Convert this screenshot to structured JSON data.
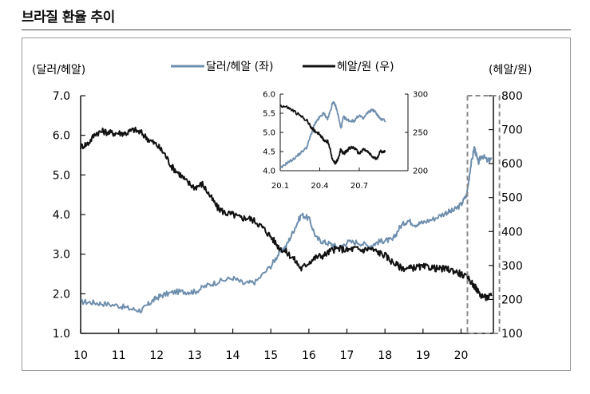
{
  "page": {
    "title": "브라질 환율 추이"
  },
  "chart_data": {
    "type": "line",
    "title": "브라질 환율 추이",
    "x": [
      10,
      11,
      12,
      13,
      14,
      15,
      16,
      17,
      18,
      19,
      20
    ],
    "x_tick_labels": [
      "10",
      "11",
      "12",
      "13",
      "14",
      "15",
      "16",
      "17",
      "18",
      "19",
      "20"
    ],
    "xlim": [
      10,
      20.85
    ],
    "left_axis": {
      "label": "(달러/헤알)",
      "ylim": [
        1.0,
        7.0
      ],
      "ticks": [
        "1.0",
        "2.0",
        "3.0",
        "4.0",
        "5.0",
        "6.0",
        "7.0"
      ]
    },
    "right_axis": {
      "label": "(헤알/원)",
      "ylim": [
        100,
        800
      ],
      "ticks": [
        "100",
        "200",
        "300",
        "400",
        "500",
        "600",
        "700",
        "800"
      ]
    },
    "series": [
      {
        "name": "달러/헤알 (좌)",
        "axis": "left",
        "color": "#6f8fae",
        "points": [
          [
            10.0,
            1.8
          ],
          [
            10.3,
            1.78
          ],
          [
            10.6,
            1.75
          ],
          [
            11.0,
            1.7
          ],
          [
            11.3,
            1.62
          ],
          [
            11.6,
            1.58
          ],
          [
            11.8,
            1.75
          ],
          [
            12.0,
            1.9
          ],
          [
            12.2,
            1.98
          ],
          [
            12.5,
            2.05
          ],
          [
            12.8,
            2.05
          ],
          [
            13.0,
            2.05
          ],
          [
            13.3,
            2.2
          ],
          [
            13.6,
            2.3
          ],
          [
            14.0,
            2.4
          ],
          [
            14.3,
            2.25
          ],
          [
            14.6,
            2.3
          ],
          [
            15.0,
            2.7
          ],
          [
            15.2,
            3.0
          ],
          [
            15.4,
            3.2
          ],
          [
            15.6,
            3.6
          ],
          [
            15.8,
            4.0
          ],
          [
            16.0,
            3.9
          ],
          [
            16.2,
            3.4
          ],
          [
            16.4,
            3.3
          ],
          [
            16.6,
            3.25
          ],
          [
            16.8,
            3.15
          ],
          [
            17.0,
            3.3
          ],
          [
            17.3,
            3.3
          ],
          [
            17.6,
            3.2
          ],
          [
            17.8,
            3.3
          ],
          [
            18.0,
            3.35
          ],
          [
            18.2,
            3.35
          ],
          [
            18.4,
            3.7
          ],
          [
            18.6,
            3.85
          ],
          [
            18.8,
            3.75
          ],
          [
            19.0,
            3.8
          ],
          [
            19.3,
            3.9
          ],
          [
            19.6,
            4.05
          ],
          [
            19.8,
            4.1
          ],
          [
            20.0,
            4.25
          ],
          [
            20.15,
            4.5
          ],
          [
            20.25,
            5.2
          ],
          [
            20.35,
            5.7
          ],
          [
            20.45,
            5.3
          ],
          [
            20.55,
            5.5
          ],
          [
            20.7,
            5.35
          ],
          [
            20.8,
            5.4
          ]
        ]
      },
      {
        "name": "헤알/원 (우)",
        "axis": "right",
        "color": "#111111",
        "points": [
          [
            10.0,
            650
          ],
          [
            10.2,
            660
          ],
          [
            10.4,
            690
          ],
          [
            10.6,
            695
          ],
          [
            10.8,
            690
          ],
          [
            11.0,
            690
          ],
          [
            11.2,
            690
          ],
          [
            11.4,
            700
          ],
          [
            11.6,
            690
          ],
          [
            11.8,
            670
          ],
          [
            12.0,
            655
          ],
          [
            12.2,
            630
          ],
          [
            12.4,
            590
          ],
          [
            12.6,
            570
          ],
          [
            12.8,
            545
          ],
          [
            13.0,
            530
          ],
          [
            13.2,
            540
          ],
          [
            13.4,
            505
          ],
          [
            13.6,
            470
          ],
          [
            13.8,
            455
          ],
          [
            14.0,
            450
          ],
          [
            14.2,
            440
          ],
          [
            14.4,
            440
          ],
          [
            14.6,
            430
          ],
          [
            14.8,
            410
          ],
          [
            15.0,
            385
          ],
          [
            15.2,
            355
          ],
          [
            15.4,
            340
          ],
          [
            15.6,
            320
          ],
          [
            15.8,
            290
          ],
          [
            16.0,
            310
          ],
          [
            16.2,
            325
          ],
          [
            16.4,
            330
          ],
          [
            16.6,
            345
          ],
          [
            16.8,
            350
          ],
          [
            17.0,
            345
          ],
          [
            17.2,
            350
          ],
          [
            17.4,
            345
          ],
          [
            17.6,
            350
          ],
          [
            17.8,
            340
          ],
          [
            18.0,
            330
          ],
          [
            18.2,
            310
          ],
          [
            18.4,
            295
          ],
          [
            18.6,
            290
          ],
          [
            18.8,
            295
          ],
          [
            19.0,
            295
          ],
          [
            19.2,
            295
          ],
          [
            19.4,
            290
          ],
          [
            19.6,
            290
          ],
          [
            19.8,
            285
          ],
          [
            20.0,
            275
          ],
          [
            20.2,
            260
          ],
          [
            20.35,
            240
          ],
          [
            20.5,
            215
          ],
          [
            20.65,
            205
          ],
          [
            20.8,
            210
          ]
        ]
      }
    ],
    "highlight_box": {
      "x_range": [
        20.0,
        20.8
      ],
      "y_range": [
        100,
        800
      ],
      "style": "dashed"
    },
    "inset": {
      "type": "line",
      "x_tick_labels": [
        "20.1",
        "20.4",
        "20.7"
      ],
      "xlim": [
        1,
        10.7
      ],
      "left_axis": {
        "ylim": [
          4.0,
          6.0
        ],
        "ticks": [
          "4.0",
          "4.5",
          "5.0",
          "5.5",
          "6.0"
        ]
      },
      "right_axis": {
        "ylim": [
          200,
          300
        ],
        "ticks": [
          "200",
          "250",
          "300"
        ]
      },
      "series": [
        {
          "name": "달러/헤알 (좌)",
          "axis": "left",
          "color": "#6f8fae",
          "points": [
            [
              1.0,
              4.05
            ],
            [
              1.5,
              4.2
            ],
            [
              2.0,
              4.3
            ],
            [
              2.5,
              4.45
            ],
            [
              3.0,
              4.6
            ],
            [
              3.3,
              4.9
            ],
            [
              3.6,
              5.2
            ],
            [
              3.8,
              5.3
            ],
            [
              4.0,
              5.4
            ],
            [
              4.3,
              5.5
            ],
            [
              4.6,
              5.35
            ],
            [
              4.8,
              5.55
            ],
            [
              5.0,
              5.8
            ],
            [
              5.2,
              5.7
            ],
            [
              5.4,
              5.45
            ],
            [
              5.6,
              5.1
            ],
            [
              5.8,
              5.4
            ],
            [
              6.0,
              5.35
            ],
            [
              6.3,
              5.3
            ],
            [
              6.6,
              5.3
            ],
            [
              7.0,
              5.45
            ],
            [
              7.3,
              5.35
            ],
            [
              7.6,
              5.5
            ],
            [
              8.0,
              5.6
            ],
            [
              8.3,
              5.5
            ],
            [
              8.6,
              5.35
            ],
            [
              9.0,
              5.3
            ]
          ]
        },
        {
          "name": "헤알/원 (우)",
          "axis": "right",
          "color": "#111111",
          "points": [
            [
              1.0,
              285
            ],
            [
              1.5,
              283
            ],
            [
              2.0,
              278
            ],
            [
              2.5,
              272
            ],
            [
              3.0,
              266
            ],
            [
              3.3,
              258
            ],
            [
              3.6,
              252
            ],
            [
              4.0,
              248
            ],
            [
              4.3,
              240
            ],
            [
              4.6,
              238
            ],
            [
              4.8,
              228
            ],
            [
              5.0,
              212
            ],
            [
              5.2,
              210
            ],
            [
              5.4,
              215
            ],
            [
              5.6,
              228
            ],
            [
              5.8,
              222
            ],
            [
              6.0,
              225
            ],
            [
              6.3,
              230
            ],
            [
              6.6,
              230
            ],
            [
              7.0,
              222
            ],
            [
              7.3,
              228
            ],
            [
              7.6,
              225
            ],
            [
              8.0,
              218
            ],
            [
              8.3,
              215
            ],
            [
              8.6,
              225
            ],
            [
              9.0,
              225
            ]
          ]
        }
      ]
    }
  }
}
